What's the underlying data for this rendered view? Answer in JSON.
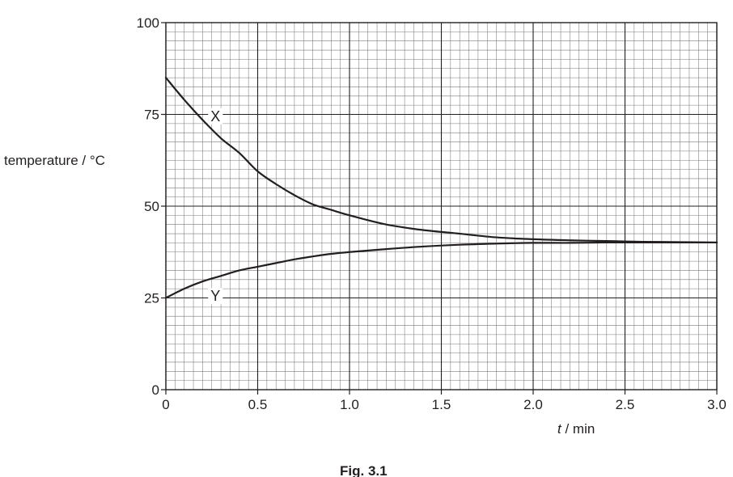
{
  "chart_data": {
    "type": "line",
    "title": "",
    "xlabel_italic": "t",
    "xlabel_unit": "/ min",
    "ylabel": "temperature / °C",
    "xlim": [
      0,
      3.0
    ],
    "ylim": [
      0,
      100
    ],
    "x_ticks": [
      "0",
      "0.5",
      "1.0",
      "1.5",
      "2.0",
      "2.5",
      "3.0"
    ],
    "y_ticks": [
      "0",
      "25",
      "50",
      "75",
      "100"
    ],
    "grid": true,
    "grid_minor_x_step": 0.05,
    "grid_minor_y_step": 2.5,
    "grid_major_x_step": 0.5,
    "grid_major_y_step": 25,
    "series": [
      {
        "name": "X",
        "x": [
          0,
          0.1,
          0.2,
          0.3,
          0.4,
          0.5,
          0.6,
          0.7,
          0.8,
          0.9,
          1.0,
          1.2,
          1.4,
          1.6,
          1.8,
          2.0,
          2.2,
          2.4,
          2.6,
          2.8,
          3.0
        ],
        "y": [
          85,
          79,
          73.5,
          68.5,
          64.5,
          59.5,
          56,
          53,
          50.5,
          49,
          47.5,
          45,
          43.5,
          42.5,
          41.5,
          41,
          40.7,
          40.5,
          40.3,
          40.2,
          40.1
        ]
      },
      {
        "name": "Y",
        "x": [
          0,
          0.1,
          0.2,
          0.3,
          0.4,
          0.5,
          0.6,
          0.7,
          0.8,
          0.9,
          1.0,
          1.2,
          1.4,
          1.6,
          1.8,
          2.0,
          2.2,
          2.4,
          2.6,
          2.8,
          3.0
        ],
        "y": [
          25,
          27.5,
          29.5,
          31,
          32.5,
          33.5,
          34.5,
          35.5,
          36.3,
          37,
          37.5,
          38.3,
          39,
          39.5,
          39.8,
          40,
          40,
          40.1,
          40.1,
          40.1,
          40.1
        ]
      }
    ],
    "annotations": [
      {
        "text": "X",
        "x": 0.27,
        "y": 74.5
      },
      {
        "text": "Y",
        "x": 0.27,
        "y": 25.5
      }
    ]
  },
  "caption": "Fig. 3.1"
}
